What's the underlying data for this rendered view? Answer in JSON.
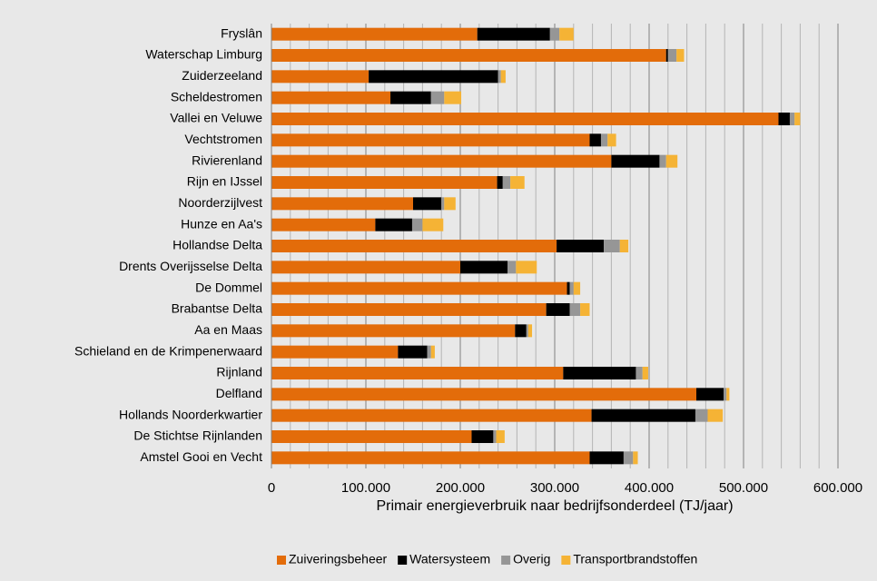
{
  "chart_data": {
    "type": "stacked_barh",
    "xlabel": "Primair energieverbruik naar bedrijfsonderdeel (TJ/jaar)",
    "categories": [
      "Fryslân",
      "Waterschap Limburg",
      "Zuiderzeeland",
      "Scheldestromen",
      "Vallei en Veluwe",
      "Vechtstromen",
      "Rivierenland",
      "Rijn en IJssel",
      "Noorderzijlvest",
      "Hunze en Aa's",
      "Hollandse Delta",
      "Drents Overijsselse Delta",
      "De Dommel",
      "Brabantse Delta",
      "Aa en Maas",
      "Schieland en de Krimpenerwaard",
      "Rijnland",
      "Delfland",
      "Hollands Noorderkwartier",
      "De Stichtse Rijnlanden",
      "Amstel Gooi en Vecht"
    ],
    "series": [
      {
        "name": "Zuiveringsbeheer",
        "color": "#e36c0a",
        "values": [
          218000,
          418000,
          103000,
          126000,
          537000,
          337000,
          360000,
          239000,
          150000,
          110000,
          302000,
          200000,
          313000,
          291000,
          258000,
          134000,
          309000,
          450000,
          339000,
          212000,
          337000
        ]
      },
      {
        "name": "Watersysteem",
        "color": "#000000",
        "values": [
          77000,
          2000,
          137000,
          43000,
          12000,
          12000,
          51000,
          6000,
          30000,
          39000,
          50000,
          50000,
          3000,
          25000,
          12000,
          31000,
          77000,
          29000,
          110000,
          23000,
          36000
        ]
      },
      {
        "name": "Overig",
        "color": "#969696",
        "values": [
          10000,
          9000,
          3000,
          14000,
          5000,
          7000,
          7000,
          8000,
          3000,
          11000,
          17000,
          9000,
          4000,
          11000,
          2000,
          4000,
          7000,
          3000,
          13000,
          3000,
          10000
        ]
      },
      {
        "name": "Transportbrandstoffen",
        "color": "#f5b335",
        "values": [
          15000,
          8000,
          5000,
          18000,
          6000,
          9000,
          12000,
          15000,
          12000,
          22000,
          9000,
          22000,
          7000,
          10000,
          4000,
          4000,
          6000,
          3000,
          16000,
          9000,
          5000
        ]
      }
    ],
    "xlim": [
      0,
      600000
    ],
    "xticks": [
      0,
      {
        "value": 100000,
        "label": "100.000"
      },
      {
        "value": 200000,
        "label": "200.000"
      },
      {
        "value": 300000,
        "label": "300.000"
      },
      {
        "value": 400000,
        "label": "400.000"
      },
      {
        "value": 500000,
        "label": "500.000"
      },
      {
        "value": 600000,
        "label": "600.000"
      }
    ],
    "xminorticks": [
      20000,
      40000,
      60000,
      80000,
      120000,
      140000,
      160000,
      180000,
      220000,
      240000,
      260000,
      280000,
      320000,
      340000,
      360000,
      380000,
      420000,
      440000,
      460000,
      480000,
      520000,
      540000,
      560000,
      580000
    ],
    "grid": true,
    "legend": "bottom"
  }
}
